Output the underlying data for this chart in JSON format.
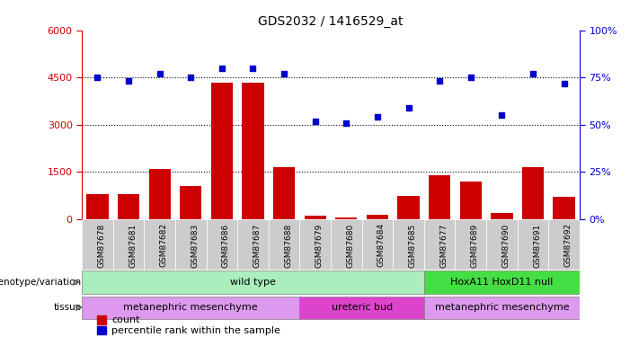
{
  "title": "GDS2032 / 1416529_at",
  "samples": [
    "GSM87678",
    "GSM87681",
    "GSM87682",
    "GSM87683",
    "GSM87686",
    "GSM87687",
    "GSM87688",
    "GSM87679",
    "GSM87680",
    "GSM87684",
    "GSM87685",
    "GSM87677",
    "GSM87689",
    "GSM87690",
    "GSM87691",
    "GSM87692"
  ],
  "counts": [
    800,
    800,
    1600,
    1050,
    4350,
    4350,
    1650,
    100,
    50,
    150,
    750,
    1400,
    1200,
    200,
    1650,
    700
  ],
  "percentiles": [
    75,
    73,
    77,
    75,
    80,
    80,
    77,
    52,
    51,
    54,
    59,
    73,
    75,
    55,
    77,
    72
  ],
  "ylim_left": [
    0,
    6000
  ],
  "ylim_right": [
    0,
    100
  ],
  "yticks_left": [
    0,
    1500,
    3000,
    4500,
    6000
  ],
  "yticks_right": [
    0,
    25,
    50,
    75,
    100
  ],
  "bar_color": "#cc0000",
  "dot_color": "#0000cc",
  "xticklabel_bg": "#cccccc",
  "genotype_groups": [
    {
      "label": "wild type",
      "start": 0,
      "end": 11,
      "color": "#aaeebb"
    },
    {
      "label": "HoxA11 HoxD11 null",
      "start": 11,
      "end": 16,
      "color": "#44dd44"
    }
  ],
  "tissue_groups": [
    {
      "label": "metanephric mesenchyme",
      "start": 0,
      "end": 7,
      "color": "#dd99ee"
    },
    {
      "label": "ureteric bud",
      "start": 7,
      "end": 11,
      "color": "#dd44cc"
    },
    {
      "label": "metanephric mesenchyme",
      "start": 11,
      "end": 16,
      "color": "#dd99ee"
    }
  ]
}
